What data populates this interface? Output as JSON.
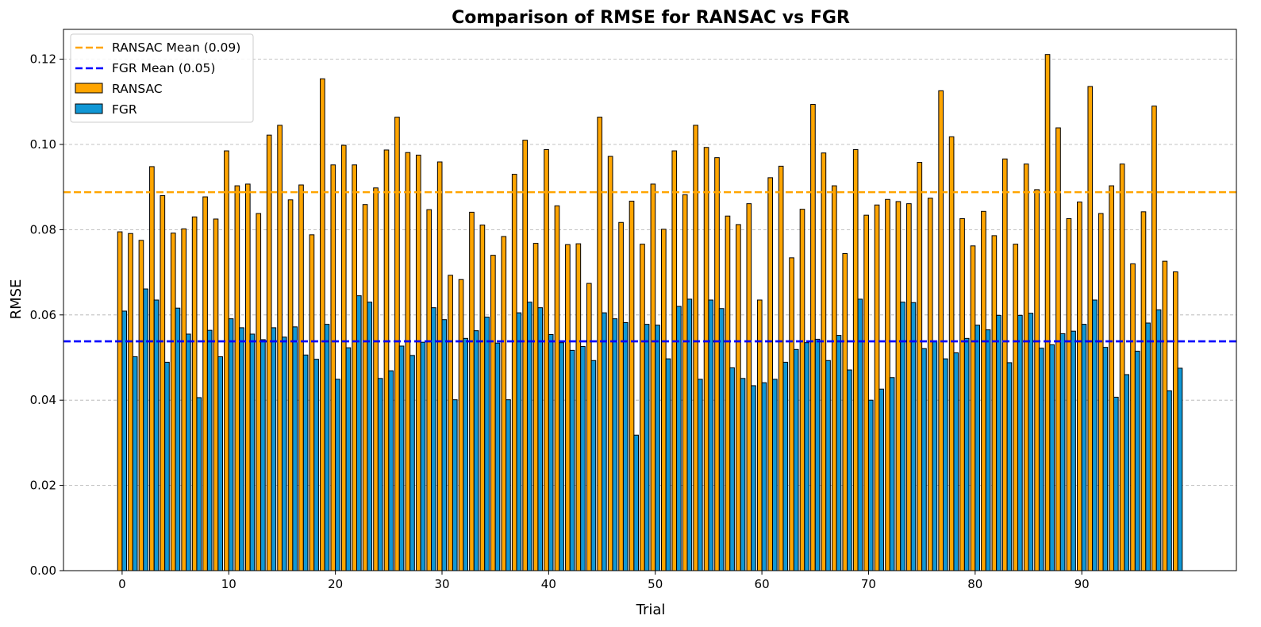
{
  "chart_data": {
    "type": "bar",
    "title": "Comparison of RMSE for RANSAC vs FGR",
    "xlabel": "Trial",
    "ylabel": "RMSE",
    "ylim": [
      0,
      0.127
    ],
    "xlim": [
      -5.5,
      104.5
    ],
    "x_ticks": [
      0,
      10,
      20,
      30,
      40,
      50,
      60,
      70,
      80,
      90
    ],
    "y_ticks": [
      "0.00",
      "0.02",
      "0.04",
      "0.06",
      "0.08",
      "0.10",
      "0.12"
    ],
    "grid": "y dashed",
    "legend_position": "top-left",
    "x": [
      0,
      1,
      2,
      3,
      4,
      5,
      6,
      7,
      8,
      9,
      10,
      11,
      12,
      13,
      14,
      15,
      16,
      17,
      18,
      19,
      20,
      21,
      22,
      23,
      24,
      25,
      26,
      27,
      28,
      29,
      30,
      31,
      32,
      33,
      34,
      35,
      36,
      37,
      38,
      39,
      40,
      41,
      42,
      43,
      44,
      45,
      46,
      47,
      48,
      49,
      50,
      51,
      52,
      53,
      54,
      55,
      56,
      57,
      58,
      59,
      60,
      61,
      62,
      63,
      64,
      65,
      66,
      67,
      68,
      69,
      70,
      71,
      72,
      73,
      74,
      75,
      76,
      77,
      78,
      79,
      80,
      81,
      82,
      83,
      84,
      85,
      86,
      87,
      88,
      89,
      90,
      91,
      92,
      93,
      94,
      95,
      96,
      97,
      98,
      99
    ],
    "series": [
      {
        "name": "RANSAC",
        "color": "#FFA500",
        "values": [
          0.0795,
          0.0791,
          0.0775,
          0.0948,
          0.088,
          0.0792,
          0.0802,
          0.083,
          0.0877,
          0.0825,
          0.0985,
          0.0903,
          0.0907,
          0.0838,
          0.1022,
          0.1045,
          0.087,
          0.0905,
          0.0788,
          0.1154,
          0.0952,
          0.0998,
          0.0952,
          0.0859,
          0.0898,
          0.0987,
          0.1064,
          0.0981,
          0.0975,
          0.0847,
          0.0959,
          0.0693,
          0.0683,
          0.0841,
          0.0811,
          0.074,
          0.0784,
          0.093,
          0.101,
          0.0768,
          0.0988,
          0.0856,
          0.0765,
          0.0767,
          0.0674,
          0.1064,
          0.0972,
          0.0817,
          0.0867,
          0.0766,
          0.0907,
          0.0801,
          0.0985,
          0.0882,
          0.1045,
          0.0993,
          0.0969,
          0.0832,
          0.0812,
          0.0861,
          0.0635,
          0.0922,
          0.0949,
          0.0734,
          0.0848,
          0.1094,
          0.098,
          0.0903,
          0.0744,
          0.0988,
          0.0834,
          0.0858,
          0.0871,
          0.0866,
          0.0861,
          0.0958,
          0.0874,
          0.1126,
          0.1018,
          0.0826,
          0.0762,
          0.0843,
          0.0786,
          0.0966,
          0.0766,
          0.0954,
          0.0894,
          0.1211,
          0.1039,
          0.0826,
          0.0865,
          0.1136,
          0.0838,
          0.0903,
          0.0954,
          0.072,
          0.0842,
          0.109,
          0.0726,
          0.0701
        ]
      },
      {
        "name": "FGR",
        "color": "#1097D5",
        "values": [
          0.0609,
          0.0502,
          0.0661,
          0.0635,
          0.0489,
          0.0616,
          0.0555,
          0.0406,
          0.0564,
          0.0502,
          0.0591,
          0.057,
          0.0555,
          0.0542,
          0.057,
          0.0548,
          0.0572,
          0.0506,
          0.0496,
          0.0578,
          0.0449,
          0.0523,
          0.0645,
          0.063,
          0.0451,
          0.0469,
          0.0527,
          0.0505,
          0.0536,
          0.0617,
          0.0589,
          0.0401,
          0.0545,
          0.0563,
          0.0595,
          0.0534,
          0.0401,
          0.0605,
          0.063,
          0.0617,
          0.0554,
          0.0535,
          0.0517,
          0.0526,
          0.0493,
          0.0605,
          0.0591,
          0.0582,
          0.0318,
          0.0578,
          0.0576,
          0.0497,
          0.062,
          0.0637,
          0.0449,
          0.0635,
          0.0615,
          0.0476,
          0.0451,
          0.0434,
          0.0441,
          0.0449,
          0.0489,
          0.0519,
          0.0535,
          0.0543,
          0.0493,
          0.0552,
          0.0471,
          0.0637,
          0.04,
          0.0426,
          0.0453,
          0.063,
          0.0629,
          0.0521,
          0.0539,
          0.0497,
          0.0511,
          0.0545,
          0.0576,
          0.0565,
          0.0599,
          0.0488,
          0.0599,
          0.0604,
          0.0522,
          0.053,
          0.0556,
          0.0562,
          0.0578,
          0.0635,
          0.0524,
          0.0407,
          0.046,
          0.0515,
          0.0581,
          0.0612,
          0.0422,
          0.0475
        ]
      }
    ],
    "reference_lines": [
      {
        "name": "RANSAC Mean (0.09)",
        "value": 0.0888,
        "color": "#FFA500",
        "style": "dashed"
      },
      {
        "name": "FGR Mean (0.05)",
        "value": 0.0538,
        "color": "#0000FF",
        "style": "dashed"
      }
    ],
    "legend": [
      "RANSAC Mean (0.09)",
      "FGR Mean (0.05)",
      "RANSAC",
      "FGR"
    ]
  }
}
